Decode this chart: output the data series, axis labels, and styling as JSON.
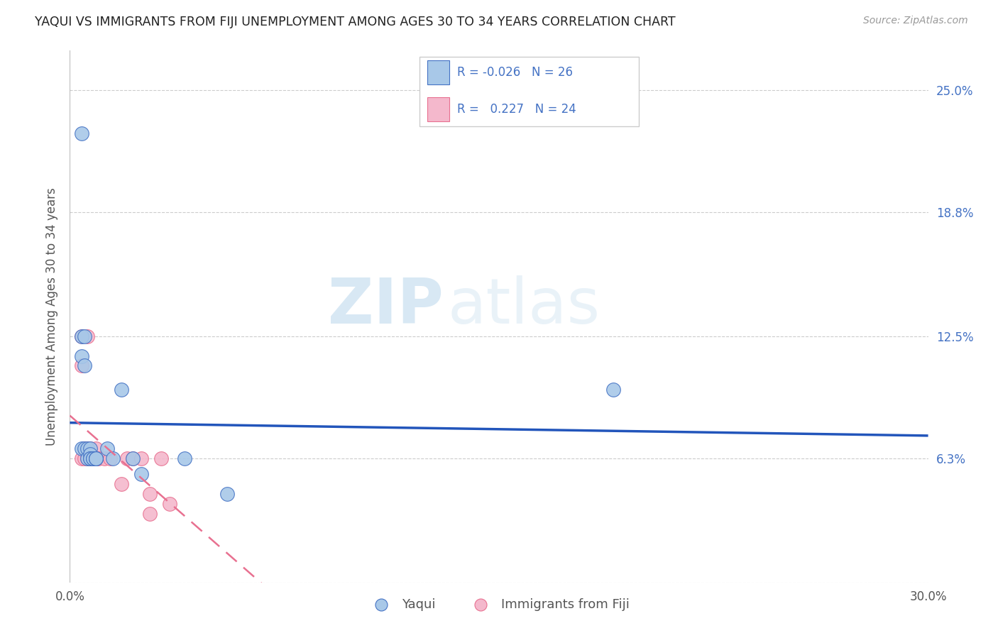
{
  "title": "YAQUI VS IMMIGRANTS FROM FIJI UNEMPLOYMENT AMONG AGES 30 TO 34 YEARS CORRELATION CHART",
  "source": "Source: ZipAtlas.com",
  "ylabel": "Unemployment Among Ages 30 to 34 years",
  "xlim": [
    0.0,
    0.3
  ],
  "ylim": [
    0.0,
    0.27
  ],
  "ytick_vals": [
    0.0,
    0.063,
    0.125,
    0.188,
    0.25
  ],
  "ytick_labels": [
    "",
    "6.3%",
    "12.5%",
    "18.8%",
    "25.0%"
  ],
  "xtick_vals": [
    0.0,
    0.05,
    0.1,
    0.15,
    0.2,
    0.25,
    0.3
  ],
  "xtick_labels": [
    "0.0%",
    "",
    "",
    "",
    "",
    "",
    "30.0%"
  ],
  "watermark_zip": "ZIP",
  "watermark_atlas": "atlas",
  "yaqui_color": "#a8c8e8",
  "fiji_color": "#f4b8cc",
  "yaqui_edge_color": "#4472c4",
  "fiji_edge_color": "#e87090",
  "yaqui_line_color": "#2255bb",
  "fiji_line_color": "#e87090",
  "legend_r1": "R = -0.026",
  "legend_n1": "N = 26",
  "legend_r2": "R =   0.227",
  "legend_n2": "N = 24",
  "legend_text_color": "#4472c4",
  "yaqui_x": [
    0.004,
    0.004,
    0.004,
    0.004,
    0.005,
    0.005,
    0.005,
    0.006,
    0.006,
    0.007,
    0.007,
    0.007,
    0.007,
    0.008,
    0.008,
    0.009,
    0.009,
    0.009,
    0.013,
    0.015,
    0.018,
    0.022,
    0.025,
    0.04,
    0.055,
    0.19
  ],
  "yaqui_y": [
    0.228,
    0.125,
    0.115,
    0.068,
    0.125,
    0.11,
    0.068,
    0.068,
    0.063,
    0.068,
    0.065,
    0.063,
    0.063,
    0.063,
    0.063,
    0.063,
    0.063,
    0.063,
    0.068,
    0.063,
    0.098,
    0.063,
    0.055,
    0.063,
    0.045,
    0.098
  ],
  "fiji_x": [
    0.004,
    0.004,
    0.004,
    0.005,
    0.005,
    0.006,
    0.006,
    0.006,
    0.007,
    0.007,
    0.008,
    0.009,
    0.009,
    0.01,
    0.012,
    0.014,
    0.018,
    0.02,
    0.022,
    0.025,
    0.028,
    0.028,
    0.032,
    0.035
  ],
  "fiji_y": [
    0.125,
    0.11,
    0.063,
    0.068,
    0.063,
    0.125,
    0.068,
    0.063,
    0.068,
    0.063,
    0.063,
    0.068,
    0.063,
    0.063,
    0.063,
    0.063,
    0.05,
    0.063,
    0.063,
    0.063,
    0.045,
    0.035,
    0.063,
    0.04
  ]
}
